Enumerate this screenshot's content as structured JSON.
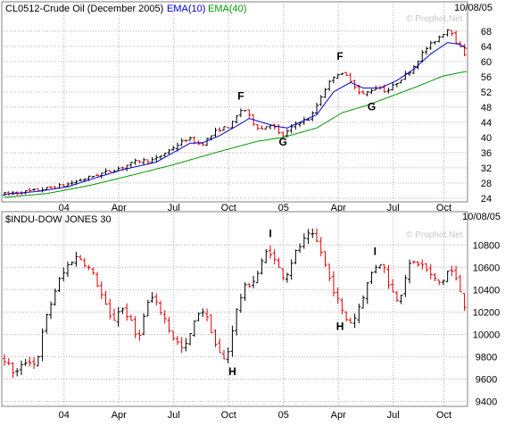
{
  "colors": {
    "up": "#000000",
    "down": "#dd0000",
    "ema_fast": "#0000cc",
    "ema_slow": "#009900",
    "border": "#808080",
    "watermark": "#c8c8c8",
    "text": "#000000"
  },
  "watermark": "© Prophet.Net",
  "chart_data": [
    {
      "type": "ohlc",
      "title": "CL0512-Crude Oil (December 2005)",
      "date_label": "10/08/05",
      "indicators": [
        {
          "name": "EMA(10)",
          "color": "#0000cc"
        },
        {
          "name": "EMA(40)",
          "color": "#009900"
        }
      ],
      "yaxis": {
        "position": "right",
        "ticks": [
          24,
          28,
          32,
          36,
          40,
          44,
          48,
          52,
          56,
          60,
          64,
          68
        ],
        "ylim": [
          23.5,
          71.5
        ]
      },
      "xaxis": {
        "labels": [
          "04",
          "Apr",
          "Jul",
          "Oct",
          "05",
          "Apr",
          "Jul",
          "Oct"
        ],
        "label_weeks": [
          12,
          25,
          38,
          51,
          64,
          77,
          90,
          102
        ]
      },
      "grid": true,
      "weeks": 104,
      "price_path": [
        [
          0,
          25
        ],
        [
          8,
          26
        ],
        [
          15,
          27.5
        ],
        [
          22,
          30
        ],
        [
          28,
          32
        ],
        [
          32,
          33.8
        ],
        [
          36,
          34
        ],
        [
          40,
          37
        ],
        [
          44,
          39.8
        ],
        [
          47,
          38
        ],
        [
          51,
          42
        ],
        [
          54,
          43
        ],
        [
          57,
          48
        ],
        [
          60,
          43
        ],
        [
          62,
          42
        ],
        [
          63,
          44
        ],
        [
          65,
          42
        ],
        [
          66,
          40
        ],
        [
          70,
          44
        ],
        [
          73,
          45
        ],
        [
          76,
          52
        ],
        [
          79,
          57
        ],
        [
          82,
          56
        ],
        [
          85,
          51
        ],
        [
          89,
          53.5
        ],
        [
          91,
          52
        ],
        [
          93,
          54
        ],
        [
          97,
          58
        ],
        [
          100,
          63
        ],
        [
          103,
          66
        ],
        [
          106,
          69
        ],
        [
          108,
          64
        ],
        [
          109,
          63
        ],
        [
          110,
          61
        ]
      ],
      "ema_fast": [
        [
          0,
          25
        ],
        [
          8,
          25.8
        ],
        [
          15,
          27
        ],
        [
          22,
          29.5
        ],
        [
          28,
          31.5
        ],
        [
          36,
          33.5
        ],
        [
          40,
          36
        ],
        [
          44,
          38.5
        ],
        [
          47,
          38.6
        ],
        [
          51,
          40.5
        ],
        [
          55,
          43
        ],
        [
          58,
          45
        ],
        [
          61,
          44
        ],
        [
          64,
          43
        ],
        [
          67,
          42.5
        ],
        [
          70,
          44
        ],
        [
          74,
          46
        ],
        [
          78,
          52
        ],
        [
          82,
          54.5
        ],
        [
          85,
          53
        ],
        [
          89,
          53
        ],
        [
          93,
          55
        ],
        [
          97,
          58
        ],
        [
          101,
          62
        ],
        [
          105,
          65
        ],
        [
          108,
          64.5
        ],
        [
          110,
          63
        ]
      ],
      "ema_slow": [
        [
          0,
          24.2
        ],
        [
          10,
          25.2
        ],
        [
          20,
          27.3
        ],
        [
          30,
          30
        ],
        [
          40,
          32.8
        ],
        [
          50,
          36
        ],
        [
          60,
          39
        ],
        [
          66,
          40
        ],
        [
          74,
          42.5
        ],
        [
          80,
          46.5
        ],
        [
          86,
          48.5
        ],
        [
          92,
          51
        ],
        [
          98,
          53.5
        ],
        [
          104,
          56.2
        ],
        [
          110,
          57.5
        ]
      ],
      "annotations": [
        {
          "text": "F",
          "x": 56,
          "y": 50
        },
        {
          "text": "G",
          "x": 66,
          "y": 37.8
        },
        {
          "text": "F",
          "x": 79.5,
          "y": 60.5
        },
        {
          "text": "G",
          "x": 87,
          "y": 47.2
        }
      ]
    },
    {
      "type": "ohlc",
      "title": "$INDU-DOW JONES 30",
      "date_label": "10/08/05",
      "yaxis": {
        "position": "right",
        "ticks": [
          9400,
          9600,
          9800,
          10000,
          10200,
          10400,
          10600,
          10800
        ],
        "ylim": [
          9380,
          10970
        ]
      },
      "xaxis": {
        "labels": [
          "04",
          "Apr",
          "Jul",
          "Oct",
          "05",
          "Apr",
          "Jul",
          "Oct"
        ],
        "label_weeks": [
          12,
          25,
          38,
          51,
          64,
          77,
          90,
          102
        ]
      },
      "grid": true,
      "weeks": 104,
      "price_path": [
        [
          0,
          9800
        ],
        [
          3,
          9640
        ],
        [
          6,
          9780
        ],
        [
          8,
          9720
        ],
        [
          10,
          10100
        ],
        [
          13,
          10450
        ],
        [
          16,
          10650
        ],
        [
          18,
          10700
        ],
        [
          20,
          10620
        ],
        [
          22,
          10500
        ],
        [
          24,
          10300
        ],
        [
          26,
          10100
        ],
        [
          28,
          10250
        ],
        [
          30,
          10150
        ],
        [
          32,
          9950
        ],
        [
          35,
          10350
        ],
        [
          38,
          10180
        ],
        [
          40,
          10000
        ],
        [
          43,
          9850
        ],
        [
          45,
          10050
        ],
        [
          47,
          10250
        ],
        [
          49,
          10100
        ],
        [
          51,
          9850
        ],
        [
          53,
          9750
        ],
        [
          55,
          10150
        ],
        [
          57,
          10400
        ],
        [
          60,
          10500
        ],
        [
          63,
          10780
        ],
        [
          65,
          10620
        ],
        [
          67,
          10500
        ],
        [
          69,
          10700
        ],
        [
          71,
          10820
        ],
        [
          73,
          10900
        ],
        [
          75,
          10800
        ],
        [
          77,
          10550
        ],
        [
          79,
          10350
        ],
        [
          81,
          10150
        ],
        [
          83,
          10100
        ],
        [
          86,
          10400
        ],
        [
          88,
          10600
        ],
        [
          90,
          10650
        ],
        [
          92,
          10400
        ],
        [
          94,
          10300
        ],
        [
          96,
          10600
        ],
        [
          98,
          10650
        ],
        [
          100,
          10600
        ],
        [
          102,
          10500
        ],
        [
          104,
          10450
        ],
        [
          106,
          10600
        ],
        [
          108,
          10450
        ],
        [
          110,
          10200
        ]
      ],
      "annotations": [
        {
          "text": "H",
          "x": 54,
          "y": 9635
        },
        {
          "text": "I",
          "x": 63,
          "y": 10870
        },
        {
          "text": "H",
          "x": 79.5,
          "y": 10040
        },
        {
          "text": "I",
          "x": 87.8,
          "y": 10710
        }
      ]
    }
  ]
}
